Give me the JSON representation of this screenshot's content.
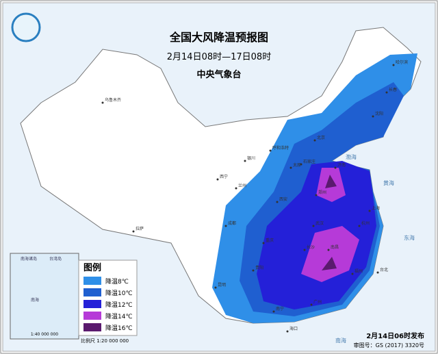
{
  "header": {
    "title": "全国大风降温预报图",
    "subtitle": "2月14日08时—17日08时",
    "agency": "中央气象台"
  },
  "legend": {
    "title": "图例",
    "items": [
      {
        "label": "降温8℃",
        "color": "#2f8fe8"
      },
      {
        "label": "降温10℃",
        "color": "#1f5fd0"
      },
      {
        "label": "降温12℃",
        "color": "#2420d8"
      },
      {
        "label": "降温14℃",
        "color": "#b63ad8"
      },
      {
        "label": "降温16℃",
        "color": "#5a1a6e"
      }
    ]
  },
  "cities": [
    "乌鲁木齐",
    "拉萨",
    "西宁",
    "兰州",
    "银川",
    "呼和浩特",
    "太原",
    "北京",
    "石家庄",
    "济南",
    "郑州",
    "西安",
    "成都",
    "重庆",
    "武汉",
    "长沙",
    "南昌",
    "杭州",
    "上海",
    "福州",
    "台北",
    "广州",
    "南宁",
    "海口",
    "昆明",
    "贵阳",
    "哈尔滨",
    "长春",
    "沈阳"
  ],
  "seas": [
    "渤海",
    "黄海",
    "东海",
    "南海"
  ],
  "inset": {
    "labels": [
      "南海诸岛",
      "台湾岛",
      "南海"
    ],
    "scale": "1:40 000 000"
  },
  "footer": {
    "scale": "比例尺  1:20 000 000",
    "release": "2月14日06时发布",
    "review": "审图号：GS (2017) 3320号"
  }
}
